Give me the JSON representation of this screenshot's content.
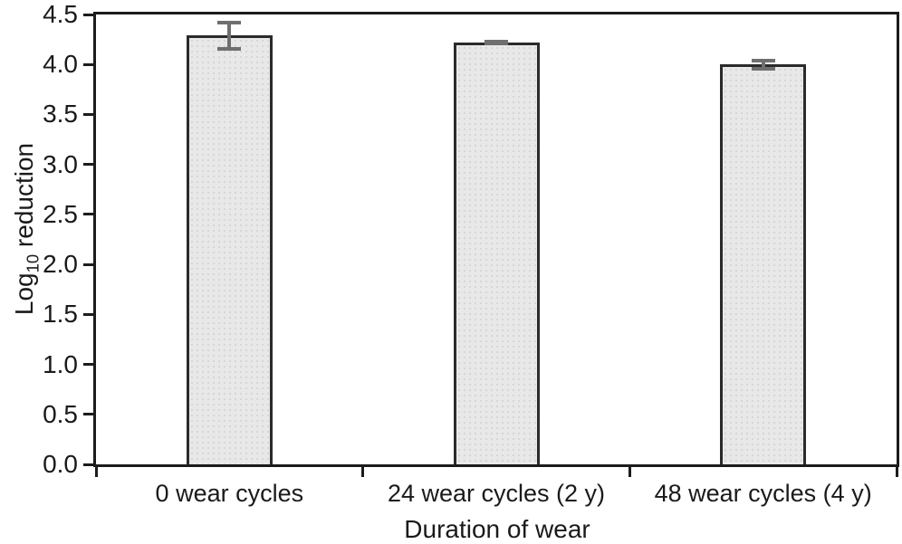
{
  "figure": {
    "y_axis_title": {
      "main": "Log",
      "sub": "10",
      "rest": " reduction"
    },
    "x_axis_title": "Duration of wear"
  },
  "chart_data": {
    "type": "bar",
    "title": "",
    "xlabel": "Duration of wear",
    "ylabel": "Log10 reduction",
    "categories": [
      "0 wear cycles",
      "24 wear cycles (2 y)",
      "48 wear cycles (4 y)"
    ],
    "values": [
      4.29,
      4.22,
      4.0
    ],
    "errors": [
      0.15,
      0.03,
      0.06
    ],
    "ylim": [
      0,
      4.5
    ],
    "ytick_step": 0.5,
    "ytick_labels": [
      "0.0",
      "0.5",
      "1.0",
      "1.5",
      "2.0",
      "2.5",
      "3.0",
      "3.5",
      "4.0",
      "4.5"
    ],
    "grid": false,
    "legend": "none",
    "colors": {
      "bar_fill": "#e8e8e8",
      "bar_stipple": "#d6d6d6",
      "bar_border": "#2b2b2b",
      "error_bar": "#6f6f6f",
      "axis": "#1c1c1c",
      "text": "#1a1a1a",
      "background": "#ffffff"
    }
  }
}
